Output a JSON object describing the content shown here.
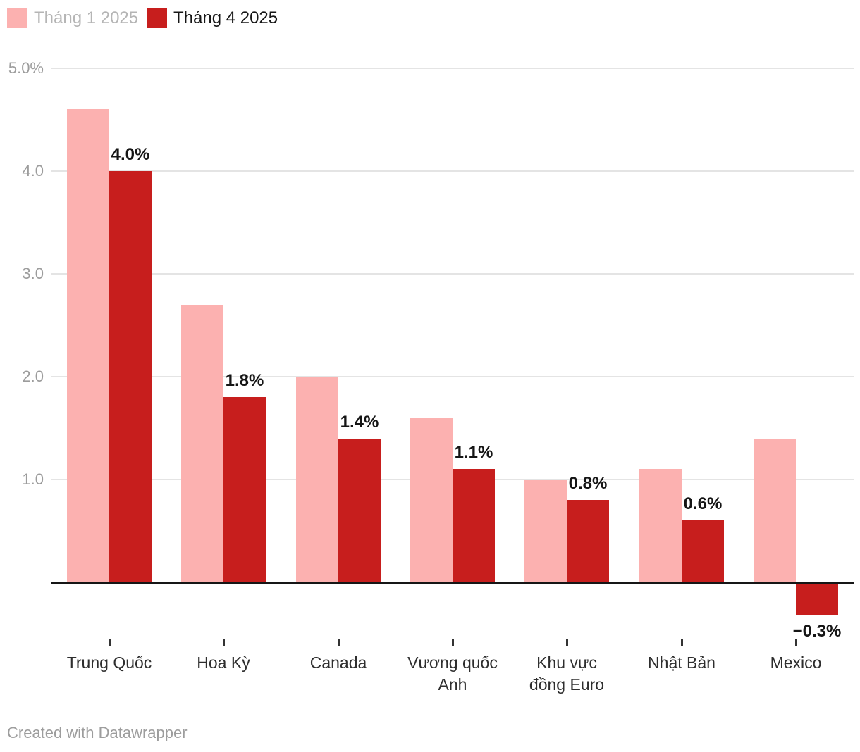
{
  "legend": [
    {
      "label": "Tháng 1 2025",
      "color": "#fcb1b0",
      "text_color": "#b5b5b5"
    },
    {
      "label": "Tháng 4 2025",
      "color": "#c71e1d",
      "text_color": "#161616"
    }
  ],
  "chart_data": {
    "type": "bar",
    "title": "",
    "xlabel": "",
    "ylabel": "",
    "categories": [
      "Trung Quốc",
      "Hoa Kỳ",
      "Canada",
      "Vương quốc\nAnh",
      "Khu vực\nđồng Euro",
      "Nhật Bản",
      "Mexico"
    ],
    "series": [
      {
        "name": "Tháng 1 2025",
        "color": "#fcb1b0",
        "values": [
          4.6,
          2.7,
          2.0,
          1.6,
          1.0,
          1.1,
          1.4
        ]
      },
      {
        "name": "Tháng 4 2025",
        "color": "#c71e1d",
        "values": [
          4.0,
          1.8,
          1.4,
          1.1,
          0.8,
          0.6,
          -0.3
        ],
        "data_labels": [
          "4.0%",
          "1.8%",
          "1.4%",
          "1.1%",
          "0.8%",
          "0.6%",
          "−0.3%"
        ]
      }
    ],
    "y_axis": {
      "min": -0.45,
      "max": 5.0,
      "grid": true,
      "ticks": [
        {
          "value": 5.0,
          "label": "5.0%"
        },
        {
          "value": 4.0,
          "label": "4.0"
        },
        {
          "value": 3.0,
          "label": "3.0"
        },
        {
          "value": 2.0,
          "label": "2.0"
        },
        {
          "value": 1.0,
          "label": "1.0"
        }
      ]
    },
    "legend_position": "top-left"
  },
  "footer": {
    "credit": "Created with Datawrapper"
  }
}
